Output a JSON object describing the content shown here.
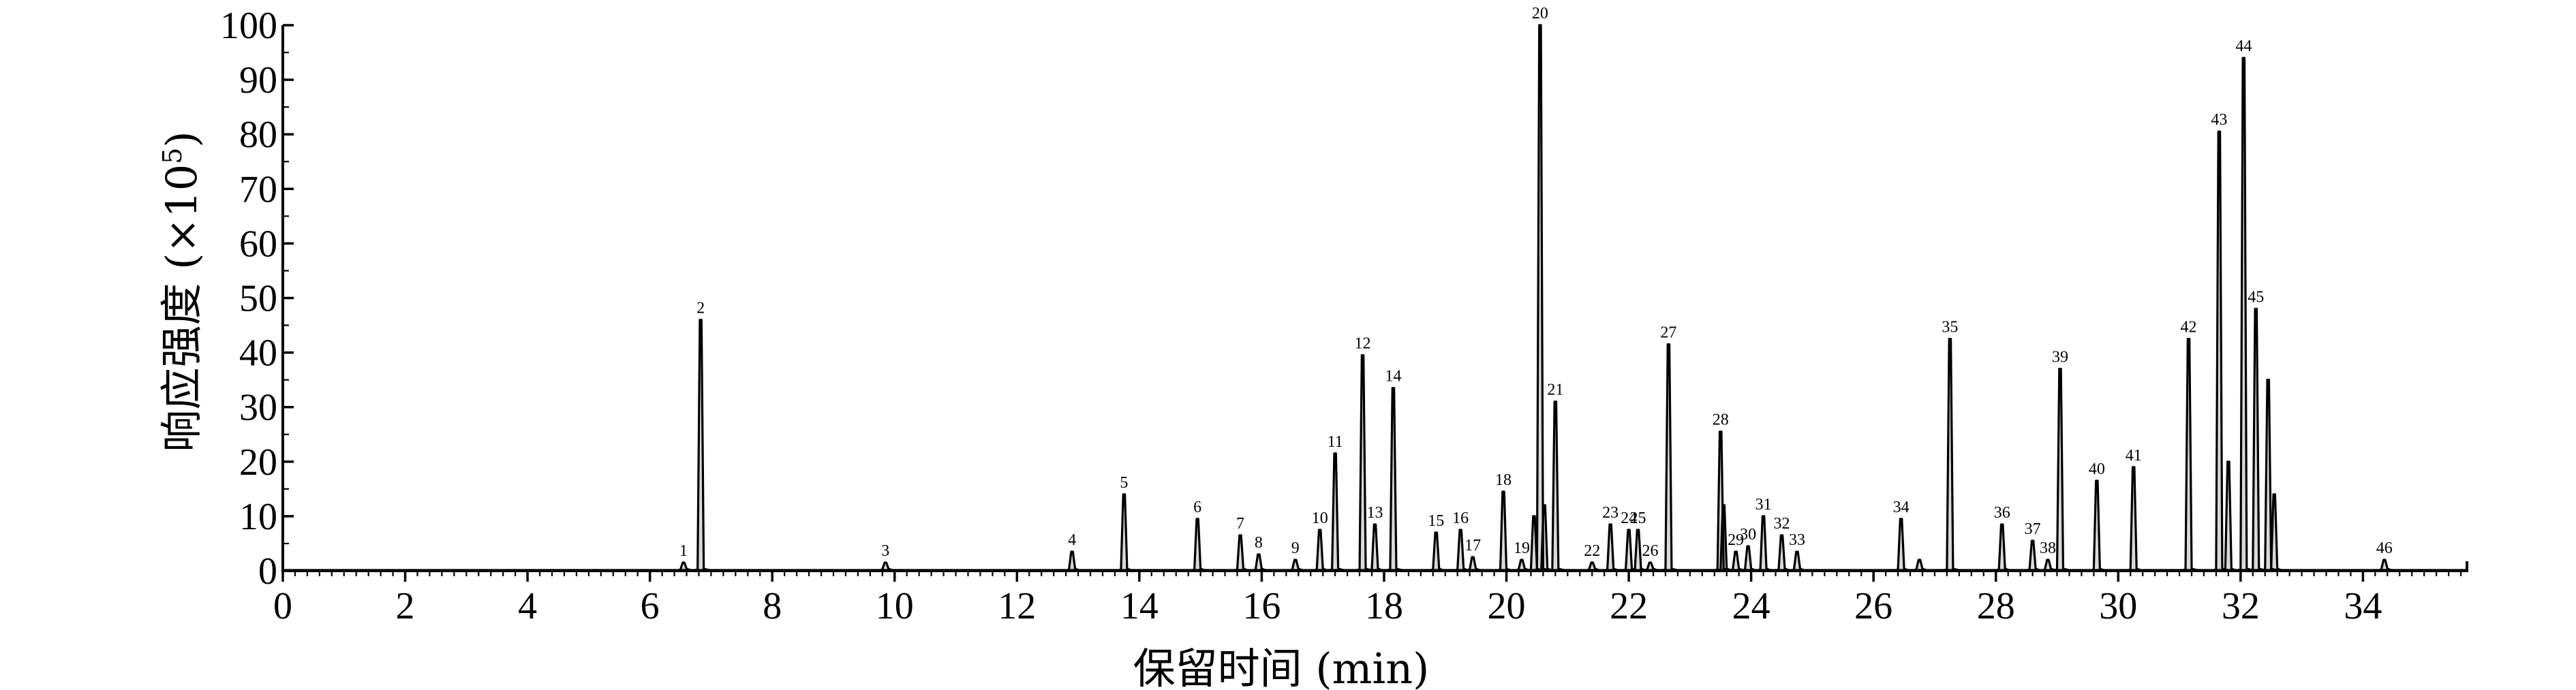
{
  "chart_data": {
    "type": "line",
    "title": "",
    "xlabel": "保留时间 (min)",
    "ylabel_main": "响应强度 (×10",
    "ylabel_exp": "5",
    "ylabel_close": ")",
    "xlim": [
      0,
      35.7
    ],
    "ylim": [
      0,
      100
    ],
    "x_ticks": [
      0,
      2,
      4,
      6,
      8,
      10,
      12,
      14,
      16,
      18,
      20,
      22,
      24,
      26,
      28,
      30,
      32,
      34
    ],
    "y_ticks": [
      0,
      10,
      20,
      30,
      40,
      50,
      60,
      70,
      80,
      90,
      100
    ],
    "grid": false,
    "peaks": [
      {
        "label": "1",
        "rt": 6.55,
        "h": 1.5
      },
      {
        "label": "2",
        "rt": 6.83,
        "h": 46
      },
      {
        "label": "3",
        "rt": 9.85,
        "h": 1.5
      },
      {
        "label": "4",
        "rt": 12.9,
        "h": 3.5
      },
      {
        "label": "5",
        "rt": 13.75,
        "h": 14
      },
      {
        "label": "6",
        "rt": 14.95,
        "h": 9.5
      },
      {
        "label": "7",
        "rt": 15.65,
        "h": 6.5
      },
      {
        "label": "8",
        "rt": 15.95,
        "h": 3
      },
      {
        "label": "9",
        "rt": 16.55,
        "h": 2
      },
      {
        "label": "10",
        "rt": 16.95,
        "h": 7.5
      },
      {
        "label": "11",
        "rt": 17.2,
        "h": 21.5
      },
      {
        "label": "12",
        "rt": 17.65,
        "h": 39.5
      },
      {
        "label": "13",
        "rt": 17.85,
        "h": 8.5
      },
      {
        "label": "14",
        "rt": 18.15,
        "h": 33.5
      },
      {
        "label": "15",
        "rt": 18.85,
        "h": 7
      },
      {
        "label": "16",
        "rt": 19.25,
        "h": 7.5
      },
      {
        "label": "17",
        "rt": 19.45,
        "h": 2.5
      },
      {
        "label": "18",
        "rt": 19.95,
        "h": 14.5
      },
      {
        "label": "19",
        "rt": 20.25,
        "h": 2
      },
      {
        "label": "20",
        "rt": 20.55,
        "h": 100
      },
      {
        "label": "21",
        "rt": 20.8,
        "h": 31
      },
      {
        "label": "22",
        "rt": 21.4,
        "h": 1.5
      },
      {
        "label": "23",
        "rt": 21.7,
        "h": 8.5
      },
      {
        "label": "24",
        "rt": 22.0,
        "h": 7.5
      },
      {
        "label": "25",
        "rt": 22.15,
        "h": 7.5
      },
      {
        "label": "26",
        "rt": 22.35,
        "h": 1.5
      },
      {
        "label": "27",
        "rt": 22.65,
        "h": 41.5
      },
      {
        "label": "28",
        "rt": 23.5,
        "h": 25.5
      },
      {
        "label": "29",
        "rt": 23.75,
        "h": 3.5
      },
      {
        "label": "30",
        "rt": 23.95,
        "h": 4.5
      },
      {
        "label": "31",
        "rt": 24.2,
        "h": 10
      },
      {
        "label": "32",
        "rt": 24.5,
        "h": 6.5
      },
      {
        "label": "33",
        "rt": 24.75,
        "h": 3.5
      },
      {
        "label": "34",
        "rt": 26.45,
        "h": 9.5
      },
      {
        "label": "35",
        "rt": 27.25,
        "h": 42.5
      },
      {
        "label": "36",
        "rt": 28.1,
        "h": 8.5
      },
      {
        "label": "37",
        "rt": 28.6,
        "h": 5.5
      },
      {
        "label": "38",
        "rt": 28.85,
        "h": 2
      },
      {
        "label": "39",
        "rt": 29.05,
        "h": 37
      },
      {
        "label": "40",
        "rt": 29.65,
        "h": 16.5
      },
      {
        "label": "41",
        "rt": 30.25,
        "h": 19
      },
      {
        "label": "42",
        "rt": 31.15,
        "h": 42.5
      },
      {
        "label": "43",
        "rt": 31.65,
        "h": 80.5
      },
      {
        "label": "44",
        "rt": 32.05,
        "h": 94
      },
      {
        "label": "45",
        "rt": 32.25,
        "h": 48
      },
      {
        "label": "46",
        "rt": 34.35,
        "h": 2
      }
    ],
    "unlabeled_peaks": [
      {
        "rt": 20.45,
        "h": 10
      },
      {
        "rt": 20.62,
        "h": 12
      },
      {
        "rt": 31.8,
        "h": 20
      },
      {
        "rt": 32.45,
        "h": 35
      },
      {
        "rt": 32.55,
        "h": 14
      },
      {
        "rt": 26.75,
        "h": 2
      },
      {
        "rt": 23.55,
        "h": 12
      }
    ]
  }
}
